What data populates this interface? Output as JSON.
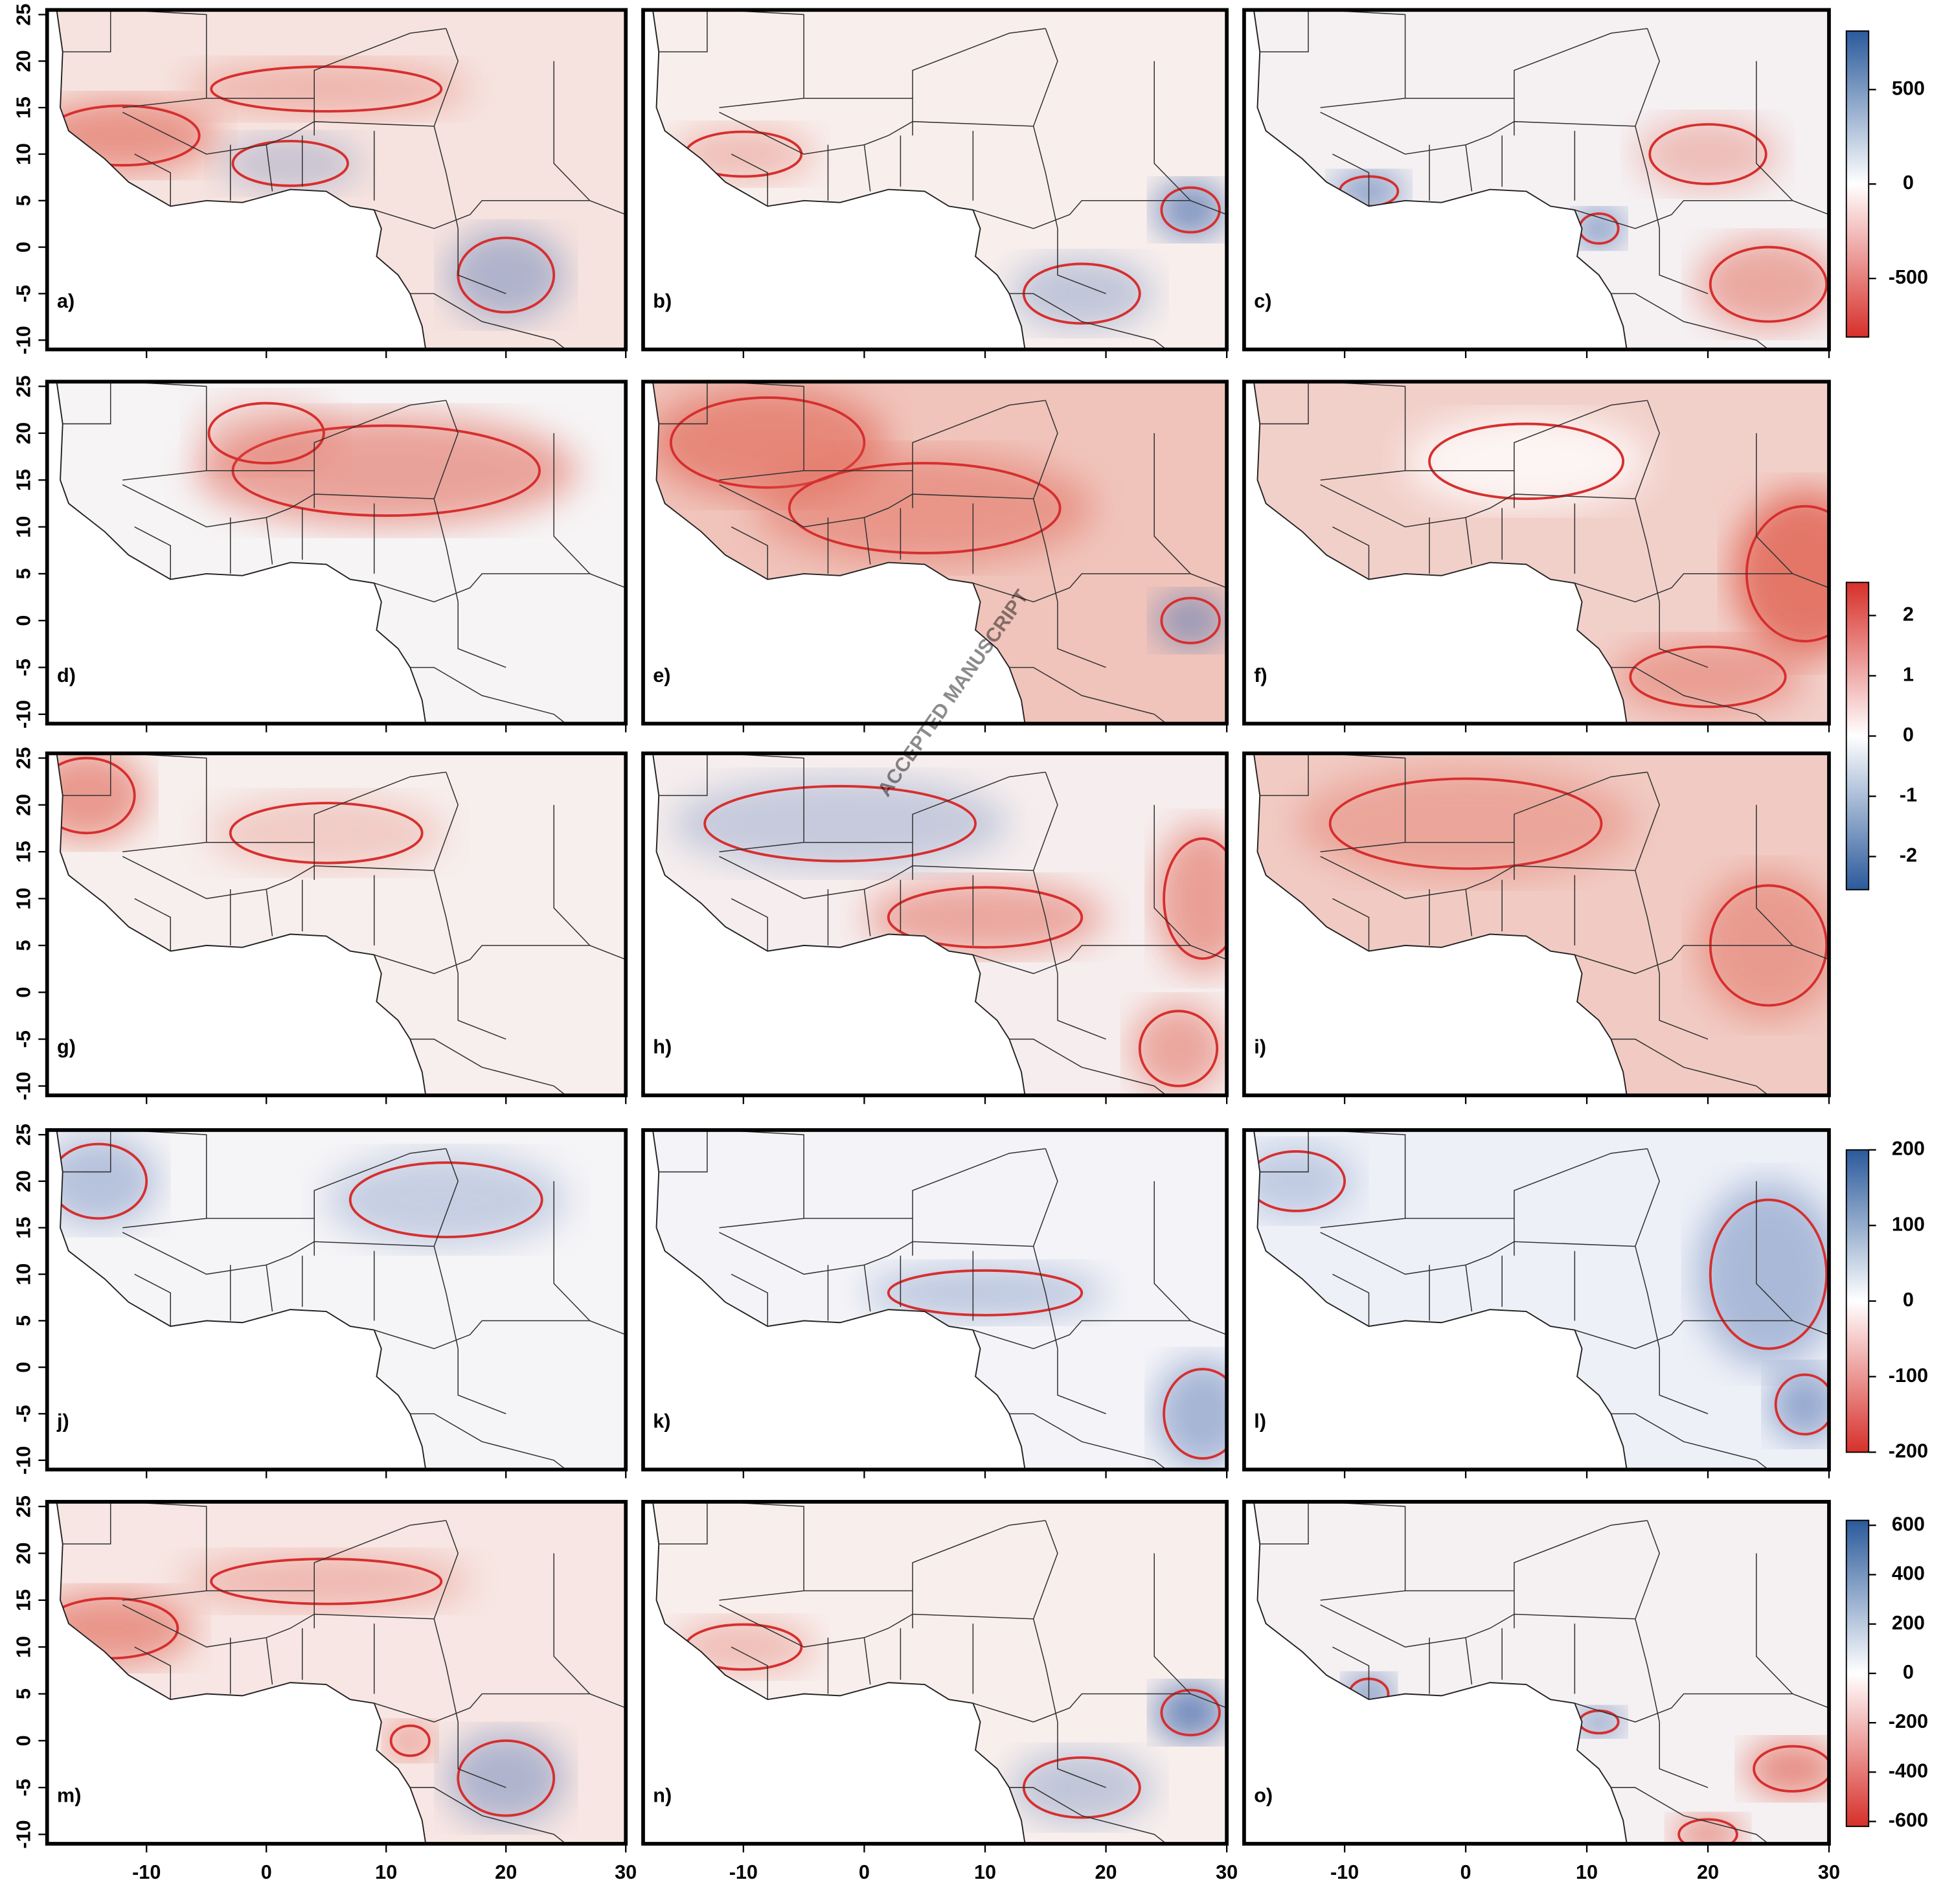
{
  "panels": [
    {
      "label": "a)"
    },
    {
      "label": "b)"
    },
    {
      "label": "c)"
    },
    {
      "label": "d)"
    },
    {
      "label": "e)"
    },
    {
      "label": "f)"
    },
    {
      "label": "g)"
    },
    {
      "label": "h)"
    },
    {
      "label": "i)"
    },
    {
      "label": "j)"
    },
    {
      "label": "k)"
    },
    {
      "label": "l)"
    },
    {
      "label": "m)"
    },
    {
      "label": "n)"
    },
    {
      "label": "o)"
    }
  ],
  "xlim": [
    -18.3,
    30
  ],
  "xticks": [
    -10,
    0,
    10,
    20,
    30
  ],
  "ylim": [
    -11,
    25.5
  ],
  "yticks": [
    -10,
    -5,
    0,
    5,
    10,
    15,
    20,
    25
  ],
  "colorbars": [
    {
      "range": [
        -810,
        810
      ],
      "ticks": [
        500,
        0,
        -500
      ],
      "colors": [
        "#2b5a9b",
        "#d7302a"
      ]
    },
    {
      "range": [
        -2.55,
        2.55
      ],
      "ticks": [
        2,
        1,
        0,
        -1,
        -2
      ],
      "colors": [
        "#d7302a",
        "#2b5a9b"
      ]
    },
    {
      "range": [
        -200,
        200
      ],
      "ticks": [
        200,
        100,
        0,
        -100,
        -200
      ],
      "colors": [
        "#2b5a9b",
        "#d7302a"
      ]
    },
    {
      "range": [
        -620,
        620
      ],
      "ticks": [
        600,
        400,
        200,
        0,
        -200,
        -400,
        -600
      ],
      "colors": [
        "#2b5a9b",
        "#d7302a"
      ]
    }
  ],
  "watermark": "ACCEPTED MANUSCRIPT"
}
